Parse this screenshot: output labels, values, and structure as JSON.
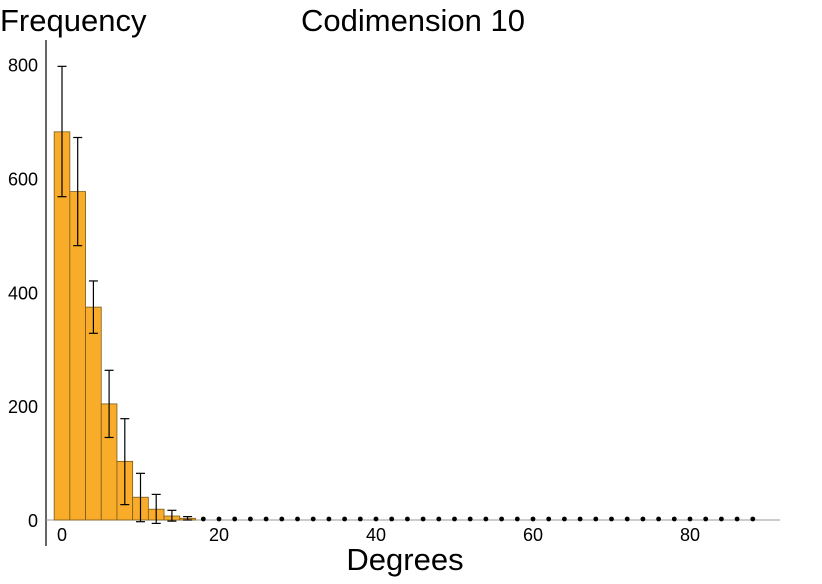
{
  "chart_data": {
    "type": "bar",
    "title": "Codimension 10",
    "xlabel": "Degrees",
    "ylabel": "Frequency",
    "xlim": [
      -2,
      91
    ],
    "ylim": [
      0,
      830
    ],
    "xticks": [
      0,
      20,
      40,
      60,
      80
    ],
    "yticks": [
      0,
      200,
      400,
      600,
      800
    ],
    "grid": false,
    "bar_color": "#f9ac2a",
    "bar_edge_color": "#7a5a1a",
    "bin_width": 2,
    "bars": [
      {
        "x": 0,
        "value": 682,
        "err_low": 568,
        "err_high": 797
      },
      {
        "x": 2,
        "value": 577,
        "err_low": 482,
        "err_high": 672
      },
      {
        "x": 4,
        "value": 374,
        "err_low": 328,
        "err_high": 420
      },
      {
        "x": 6,
        "value": 204,
        "err_low": 145,
        "err_high": 263
      },
      {
        "x": 8,
        "value": 103,
        "err_low": 27,
        "err_high": 178
      },
      {
        "x": 10,
        "value": 40,
        "err_low": -3,
        "err_high": 82
      },
      {
        "x": 12,
        "value": 19,
        "err_low": -6,
        "err_high": 45
      },
      {
        "x": 14,
        "value": 7,
        "err_low": -2,
        "err_high": 17
      },
      {
        "x": 16,
        "value": 3,
        "err_low": 0,
        "err_high": 6
      }
    ],
    "zero_markers_x": [
      18,
      20,
      22,
      24,
      26,
      28,
      30,
      32,
      34,
      36,
      38,
      40,
      42,
      44,
      46,
      48,
      50,
      52,
      54,
      56,
      58,
      60,
      62,
      64,
      66,
      68,
      70,
      72,
      74,
      76,
      78,
      80,
      82,
      84,
      86,
      88
    ]
  }
}
